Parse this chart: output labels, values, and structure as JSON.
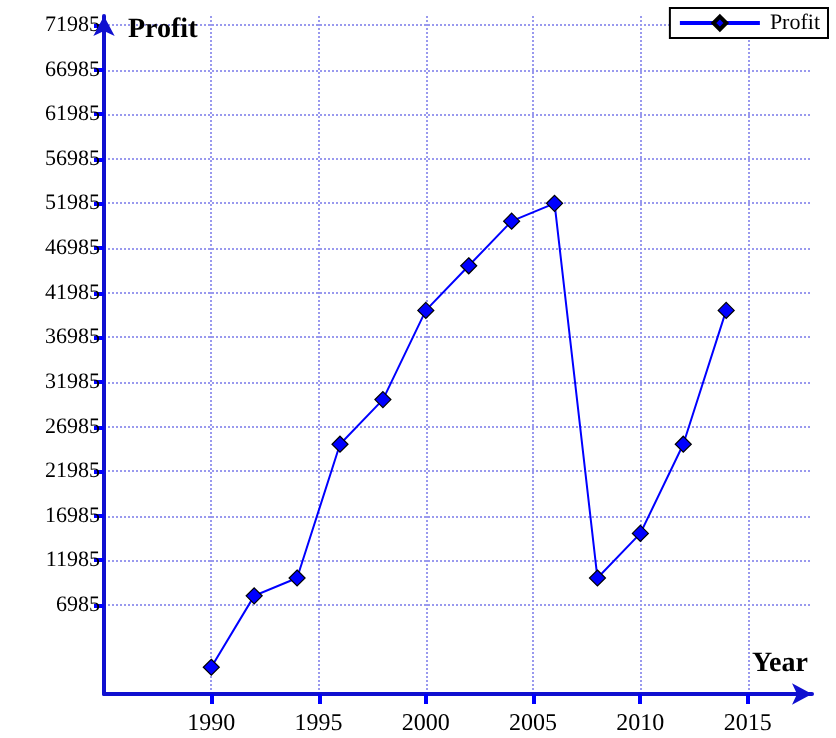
{
  "chart_data": {
    "type": "line",
    "xlabel": "Year",
    "ylabel": "Profit",
    "x": [
      1990,
      1992,
      1994,
      1996,
      1998,
      2000,
      2002,
      2004,
      2006,
      2008,
      2010,
      2012,
      2014
    ],
    "series": [
      {
        "name": "Profit",
        "color": "#0000ff",
        "values": [
          0,
          8000,
          10000,
          25000,
          30000,
          40000,
          45000,
          50000,
          52000,
          10000,
          15000,
          25000,
          40000
        ]
      }
    ],
    "xlim": [
      1985,
      2018
    ],
    "xticks": [
      1990,
      1995,
      2000,
      2005,
      2010,
      2015
    ],
    "ylim": [
      -3000,
      73000
    ],
    "yticks": [
      6985,
      11985,
      16985,
      21985,
      26985,
      31985,
      36985,
      41985,
      46985,
      51985,
      56985,
      61985,
      66985,
      71985
    ],
    "grid": true,
    "legend": "top right",
    "marker": "diamond",
    "line_style": "solid"
  }
}
